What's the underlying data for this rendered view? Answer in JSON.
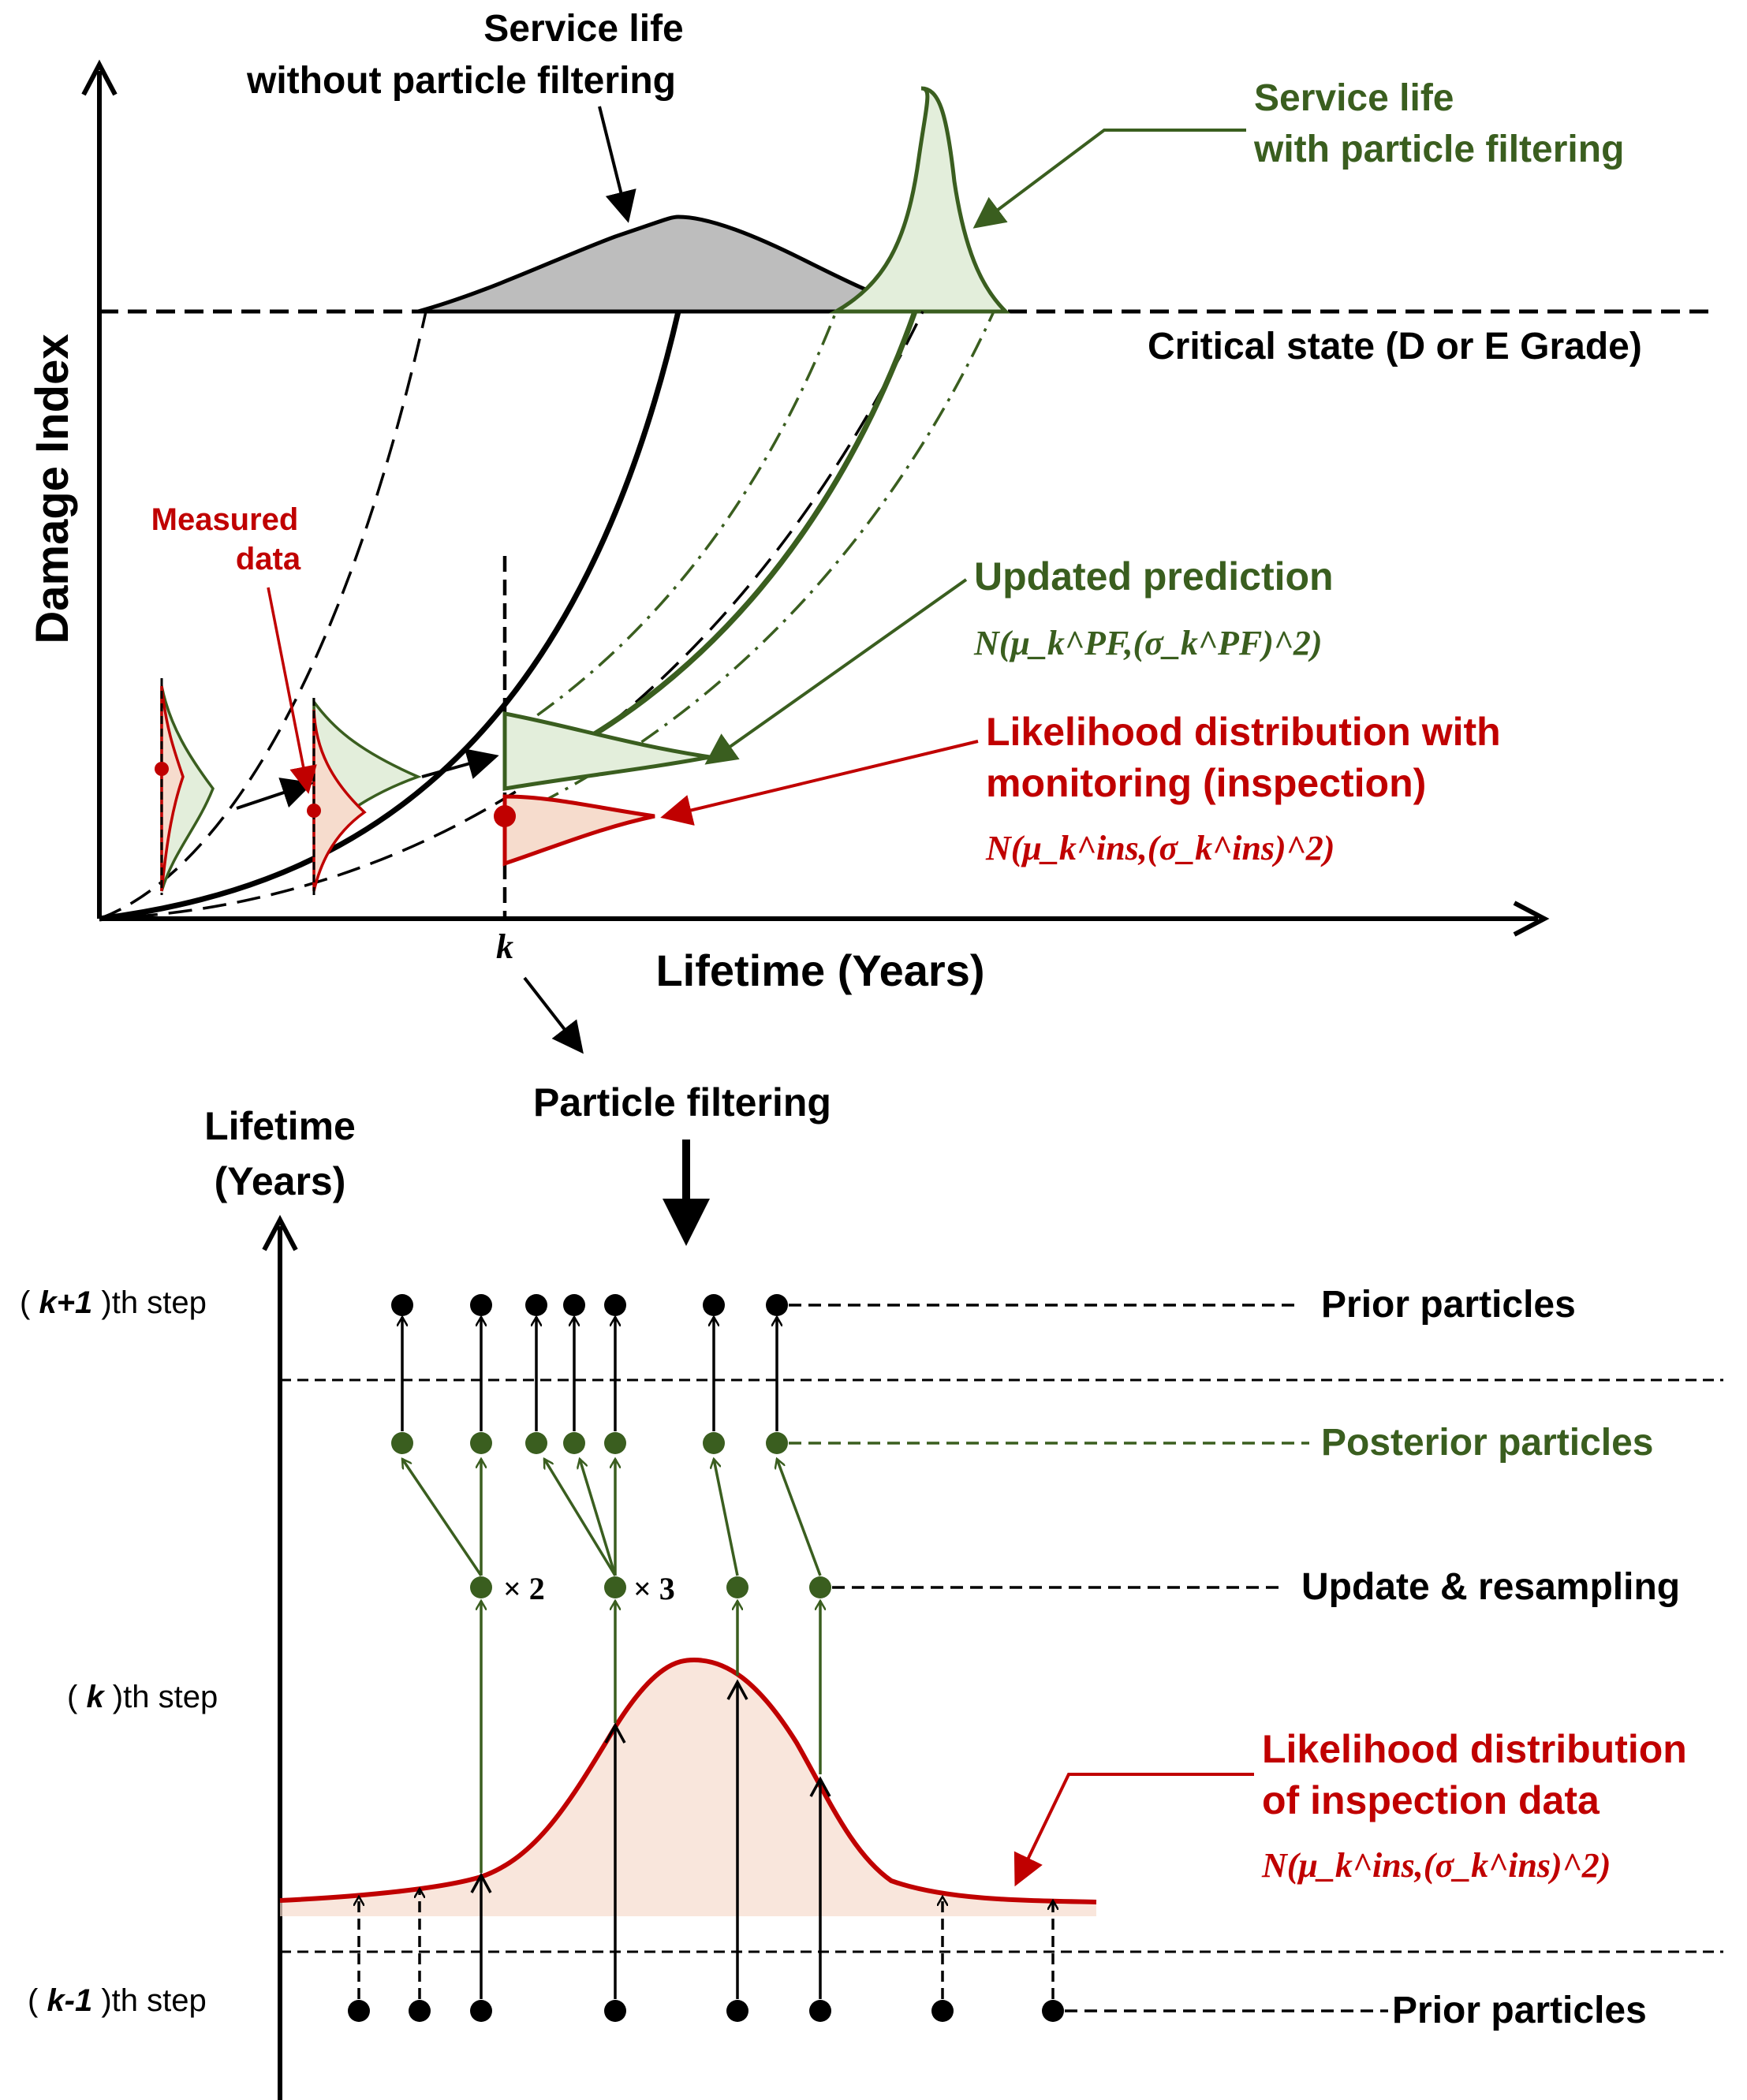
{
  "top": {
    "y_axis_label": "Damage Index",
    "x_axis_label": "Lifetime (Years)",
    "k_label": "k",
    "critical_state": "Critical state (D or E Grade)",
    "service_life_without": [
      "Service life",
      "without particle filtering"
    ],
    "service_life_with": [
      "Service life",
      "with particle filtering"
    ],
    "measured_data": [
      "Measured",
      "data"
    ],
    "updated_prediction": "Updated prediction",
    "updated_formula": "N(μ_k^PF,(σ_k^PF)^2)",
    "likelihood": [
      "Likelihood distribution with",
      "monitoring (inspection)"
    ],
    "likelihood_formula": "N(μ_k^ins,(σ_k^ins)^2)"
  },
  "bottom": {
    "y_axis_label": [
      "Lifetime",
      "(Years)"
    ],
    "particle_filtering": "Particle filtering",
    "step_k_plus_1": {
      "open": "( ",
      "k": "k+1",
      "close": " )th step"
    },
    "step_k": {
      "open": "( ",
      "k": "k",
      "close": " )th step"
    },
    "step_k_minus_1": {
      "open": "( ",
      "k": "k-1",
      "close": " )th step"
    },
    "prior_particles_top": "Prior particles",
    "posterior_particles": "Posterior particles",
    "update_resampling": "Update & resampling",
    "prior_particles_bottom": "Prior particles",
    "times_2": "× 2",
    "times_3": "× 3",
    "likelihood_inspection": [
      "Likelihood distribution",
      "of inspection data"
    ],
    "likelihood_formula": "N(μ_k^ins,(σ_k^ins)^2)"
  },
  "colors": {
    "green": "#3a5e1f",
    "red": "#c00000",
    "gray_fill": "#bdbdbd",
    "green_fill": "#e3eedb",
    "red_fill": "#f6dccd"
  }
}
